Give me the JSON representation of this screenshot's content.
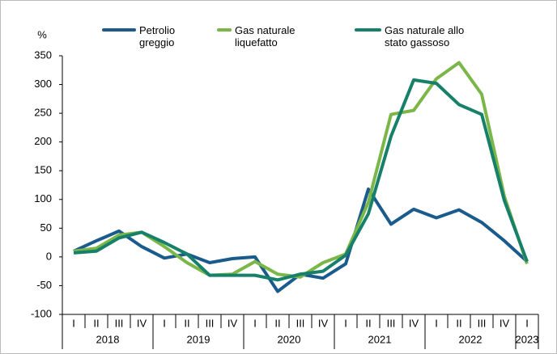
{
  "chart_data": {
    "type": "line",
    "y_label": "%",
    "categories": [
      "I",
      "II",
      "III",
      "IV",
      "I",
      "II",
      "III",
      "IV",
      "I",
      "II",
      "III",
      "IV",
      "I",
      "II",
      "III",
      "IV",
      "I",
      "II",
      "III",
      "IV",
      "I"
    ],
    "year_groups": [
      "2018",
      "2019",
      "2020",
      "2021",
      "2022",
      "2023"
    ],
    "series": [
      {
        "name": "Petrolio greggio",
        "color": "#1a5b8e",
        "values": [
          10,
          28,
          45,
          18,
          -2,
          5,
          -10,
          -3,
          0,
          -60,
          -30,
          -37,
          -12,
          118,
          57,
          83,
          68,
          82,
          60,
          28,
          -8
        ]
      },
      {
        "name": "Gas naturale liquefatto",
        "color": "#7ab648",
        "values": [
          10,
          15,
          38,
          43,
          18,
          -10,
          -32,
          -30,
          -8,
          -30,
          -35,
          -10,
          5,
          95,
          248,
          255,
          310,
          338,
          283,
          105,
          -12
        ]
      },
      {
        "name": "Gas naturale allo stato gassoso",
        "color": "#16806a",
        "values": [
          7,
          10,
          33,
          43,
          25,
          5,
          -32,
          -32,
          -32,
          -40,
          -30,
          -25,
          3,
          75,
          210,
          308,
          302,
          265,
          248,
          98,
          -8
        ]
      }
    ],
    "ylim": [
      -100,
      350
    ],
    "yticks": [
      -100,
      -50,
      0,
      50,
      100,
      150,
      200,
      250,
      300,
      350
    ],
    "grid": false
  }
}
